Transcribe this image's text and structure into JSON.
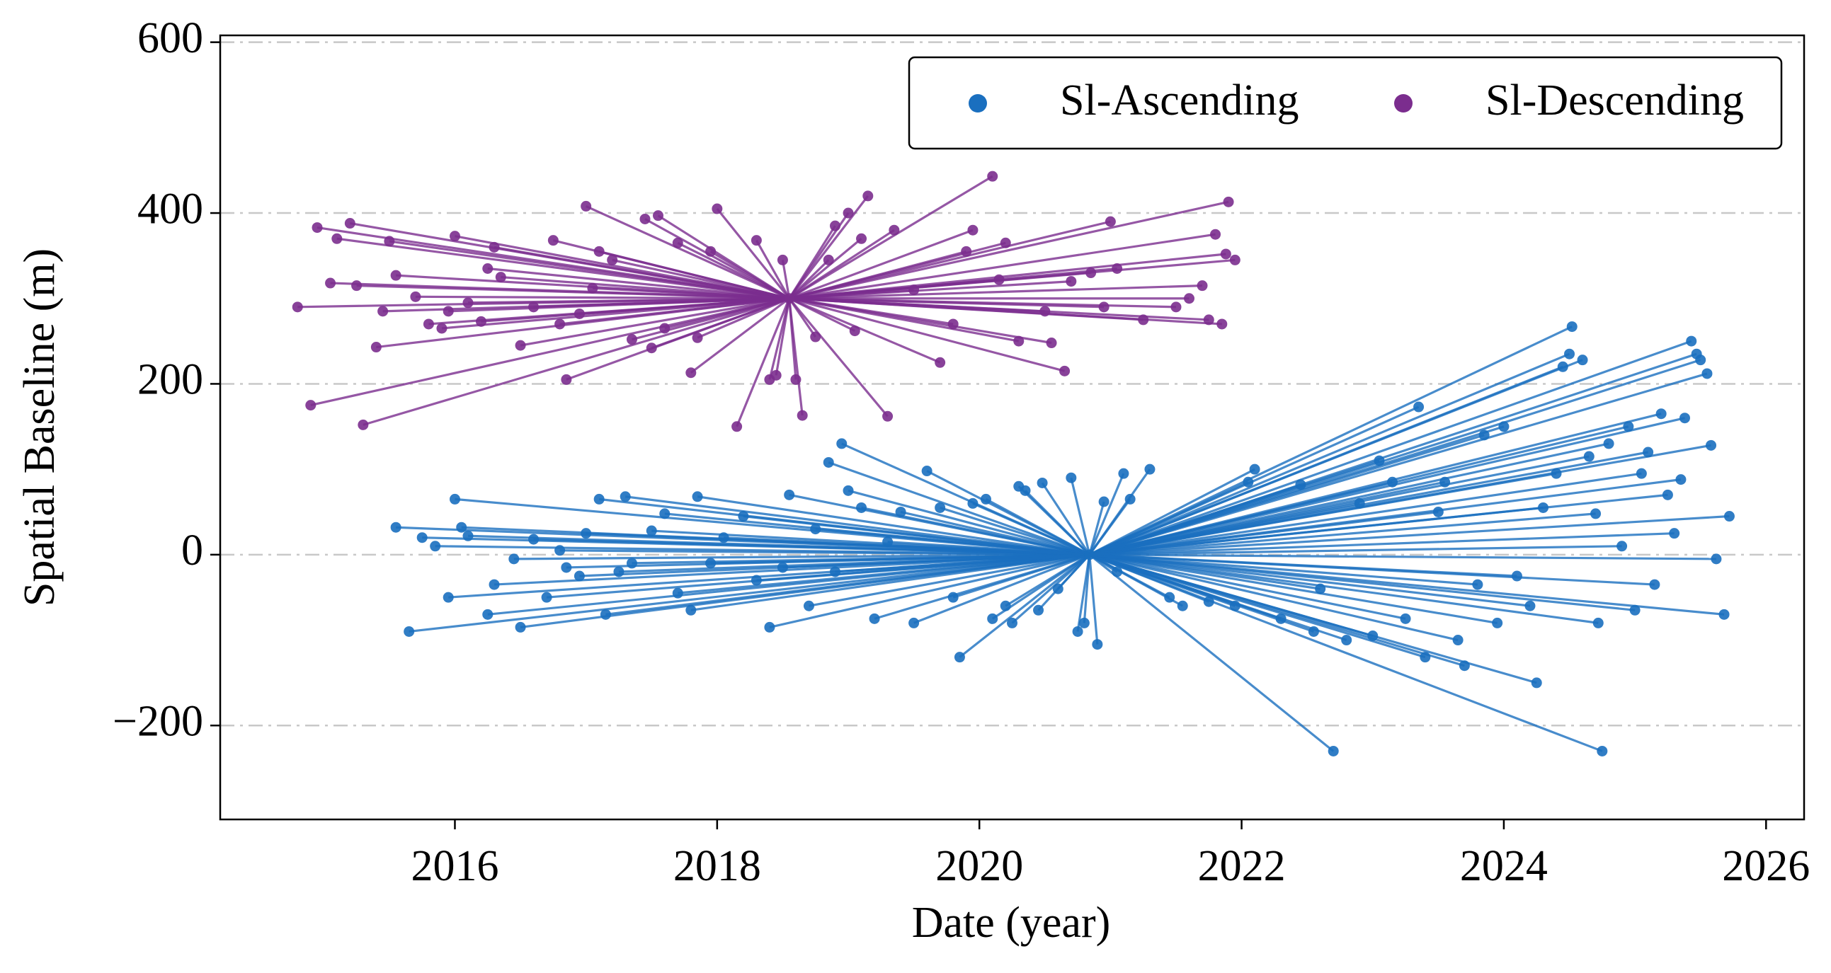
{
  "chart_data": {
    "type": "scatter",
    "xlabel": "Date (year)",
    "ylabel": "Spatial Baseline (m)",
    "xlim": [
      2014.21,
      2026.29
    ],
    "ylim": [
      -310,
      608
    ],
    "xticks": [
      2016,
      2018,
      2020,
      2022,
      2024,
      2026
    ],
    "yticks": [
      {
        "value": -200,
        "label": "−200"
      },
      0,
      200,
      400,
      600
    ],
    "grid": true,
    "legend": "upper right",
    "series": [
      {
        "name": "Sl-Ascending",
        "color": "#1a6fbf",
        "x": [
          2020.84,
          2015.55,
          2015.65,
          2015.75,
          2015.85,
          2015.95,
          2016.0,
          2016.05,
          2016.1,
          2016.25,
          2016.3,
          2016.45,
          2016.5,
          2016.6,
          2016.7,
          2016.8,
          2016.85,
          2016.95,
          2017.0,
          2017.1,
          2017.15,
          2017.25,
          2017.3,
          2017.35,
          2017.5,
          2017.6,
          2017.7,
          2017.8,
          2017.85,
          2017.95,
          2018.05,
          2018.2,
          2018.3,
          2018.4,
          2018.5,
          2018.55,
          2018.7,
          2018.75,
          2018.85,
          2018.9,
          2018.95,
          2019.0,
          2019.1,
          2019.2,
          2019.3,
          2019.4,
          2019.5,
          2019.6,
          2019.7,
          2019.8,
          2019.85,
          2019.95,
          2020.05,
          2020.1,
          2020.2,
          2020.25,
          2020.3,
          2020.35,
          2020.45,
          2020.48,
          2020.6,
          2020.7,
          2020.75,
          2020.8,
          2020.9,
          2020.95,
          2021.05,
          2021.1,
          2021.15,
          2021.3,
          2021.45,
          2021.55,
          2021.75,
          2021.95,
          2022.05,
          2022.1,
          2022.3,
          2022.45,
          2022.55,
          2022.6,
          2022.7,
          2022.8,
          2022.9,
          2023.0,
          2023.05,
          2023.15,
          2023.25,
          2023.35,
          2023.4,
          2023.5,
          2023.55,
          2023.65,
          2023.7,
          2023.8,
          2023.85,
          2023.95,
          2024.0,
          2024.1,
          2024.2,
          2024.25,
          2024.3,
          2024.4,
          2024.45,
          2024.5,
          2024.52,
          2024.6,
          2024.65,
          2024.7,
          2024.72,
          2024.75,
          2024.8,
          2024.9,
          2024.95,
          2025.0,
          2025.05,
          2025.1,
          2025.15,
          2025.2,
          2025.25,
          2025.3,
          2025.35,
          2025.38,
          2025.43,
          2025.47,
          2025.5,
          2025.55,
          2025.58,
          2025.62,
          2025.68,
          2025.72
        ],
        "values": [
          0,
          32,
          -90,
          20,
          10,
          -50,
          65,
          32,
          22,
          -70,
          -35,
          -5,
          -85,
          18,
          -50,
          5,
          -15,
          -25,
          25,
          65,
          -70,
          -20,
          68,
          -10,
          28,
          48,
          -45,
          -65,
          68,
          -10,
          20,
          45,
          -30,
          -85,
          -15,
          70,
          -60,
          30,
          108,
          -20,
          130,
          75,
          55,
          -75,
          15,
          50,
          -80,
          98,
          55,
          -50,
          -120,
          60,
          65,
          -75,
          -60,
          -80,
          80,
          75,
          -65,
          84,
          -40,
          90,
          -90,
          -80,
          -105,
          62,
          -20,
          95,
          65,
          100,
          -50,
          -60,
          -55,
          -60,
          85,
          100,
          -75,
          82,
          -90,
          -40,
          -230,
          -100,
          60,
          -95,
          110,
          85,
          -75,
          173,
          -120,
          50,
          85,
          -100,
          -130,
          -35,
          140,
          -80,
          150,
          -25,
          -60,
          -150,
          55,
          95,
          220,
          235,
          267,
          228,
          115,
          48,
          -80,
          -230,
          130,
          10,
          150,
          -65,
          95,
          120,
          -35,
          165,
          70,
          25,
          88,
          160,
          250,
          235,
          228,
          212,
          128,
          -5,
          -70,
          45
        ]
      },
      {
        "name": "Sl-Descending",
        "color": "#7b2d8e",
        "x": [
          2018.55,
          2014.8,
          2014.9,
          2014.95,
          2015.05,
          2015.1,
          2015.2,
          2015.25,
          2015.3,
          2015.4,
          2015.45,
          2015.5,
          2015.55,
          2015.7,
          2015.8,
          2015.9,
          2015.95,
          2016.0,
          2016.1,
          2016.2,
          2016.25,
          2016.3,
          2016.35,
          2016.5,
          2016.6,
          2016.75,
          2016.8,
          2016.85,
          2016.95,
          2017.0,
          2017.05,
          2017.1,
          2017.2,
          2017.35,
          2017.45,
          2017.5,
          2017.55,
          2017.6,
          2017.7,
          2017.8,
          2017.85,
          2017.95,
          2018.0,
          2018.15,
          2018.3,
          2018.4,
          2018.45,
          2018.5,
          2018.6,
          2018.65,
          2018.75,
          2018.85,
          2018.9,
          2019.0,
          2019.05,
          2019.1,
          2019.15,
          2019.3,
          2019.35,
          2019.5,
          2019.7,
          2019.8,
          2019.9,
          2019.95,
          2020.1,
          2020.15,
          2020.2,
          2020.3,
          2020.5,
          2020.55,
          2020.65,
          2020.7,
          2020.85,
          2020.95,
          2021.0,
          2021.05,
          2021.25,
          2021.5,
          2021.6,
          2021.7,
          2021.75,
          2021.8,
          2021.85,
          2021.88,
          2021.9,
          2021.95
        ],
        "values": [
          300,
          290,
          175,
          383,
          318,
          370,
          388,
          315,
          152,
          243,
          285,
          367,
          327,
          302,
          270,
          265,
          285,
          373,
          295,
          273,
          335,
          360,
          325,
          245,
          290,
          368,
          270,
          205,
          282,
          408,
          312,
          355,
          345,
          252,
          393,
          242,
          397,
          265,
          365,
          213,
          254,
          355,
          405,
          150,
          368,
          205,
          210,
          345,
          205,
          163,
          255,
          345,
          385,
          400,
          262,
          370,
          420,
          162,
          380,
          310,
          225,
          270,
          355,
          380,
          443,
          322,
          365,
          250,
          285,
          248,
          215,
          320,
          330,
          290,
          390,
          335,
          275,
          290,
          300,
          315,
          275,
          375,
          270,
          352,
          413,
          345
        ]
      }
    ]
  }
}
